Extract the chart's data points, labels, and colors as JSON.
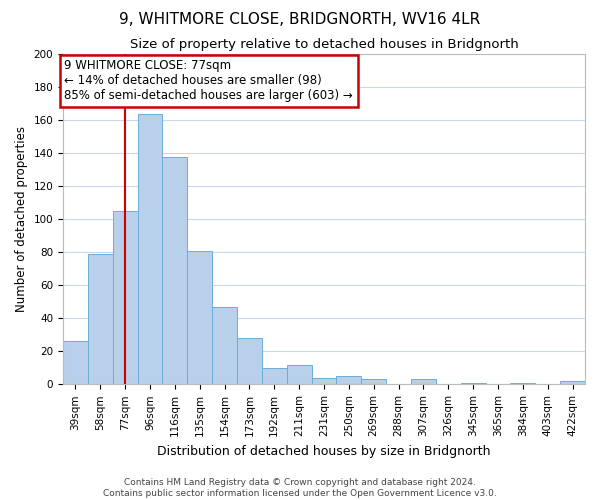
{
  "title": "9, WHITMORE CLOSE, BRIDGNORTH, WV16 4LR",
  "subtitle": "Size of property relative to detached houses in Bridgnorth",
  "xlabel": "Distribution of detached houses by size in Bridgnorth",
  "ylabel": "Number of detached properties",
  "bins": [
    "39sqm",
    "58sqm",
    "77sqm",
    "96sqm",
    "116sqm",
    "135sqm",
    "154sqm",
    "173sqm",
    "192sqm",
    "211sqm",
    "231sqm",
    "250sqm",
    "269sqm",
    "288sqm",
    "307sqm",
    "326sqm",
    "345sqm",
    "365sqm",
    "384sqm",
    "403sqm",
    "422sqm"
  ],
  "values": [
    26,
    79,
    105,
    164,
    138,
    81,
    47,
    28,
    10,
    12,
    4,
    5,
    3,
    0,
    3,
    0,
    1,
    0,
    1,
    0,
    2
  ],
  "bar_color": "#b8d0ea",
  "bar_edge_color": "#6baed6",
  "property_line_x": 2,
  "ylim": [
    0,
    200
  ],
  "yticks": [
    0,
    20,
    40,
    60,
    80,
    100,
    120,
    140,
    160,
    180,
    200
  ],
  "annotation_title": "9 WHITMORE CLOSE: 77sqm",
  "annotation_line1": "← 14% of detached houses are smaller (98)",
  "annotation_line2": "85% of semi-detached houses are larger (603) →",
  "annotation_box_color": "#ffffff",
  "annotation_box_edge": "#cc0000",
  "footer_line1": "Contains HM Land Registry data © Crown copyright and database right 2024.",
  "footer_line2": "Contains public sector information licensed under the Open Government Licence v3.0.",
  "background_color": "#ffffff",
  "grid_color": "#c8d8ec",
  "red_line_color": "#cc0000",
  "title_fontsize": 11,
  "subtitle_fontsize": 9.5,
  "xlabel_fontsize": 9,
  "ylabel_fontsize": 8.5,
  "tick_fontsize": 7.5,
  "annotation_fontsize": 8.5,
  "footer_fontsize": 6.5
}
